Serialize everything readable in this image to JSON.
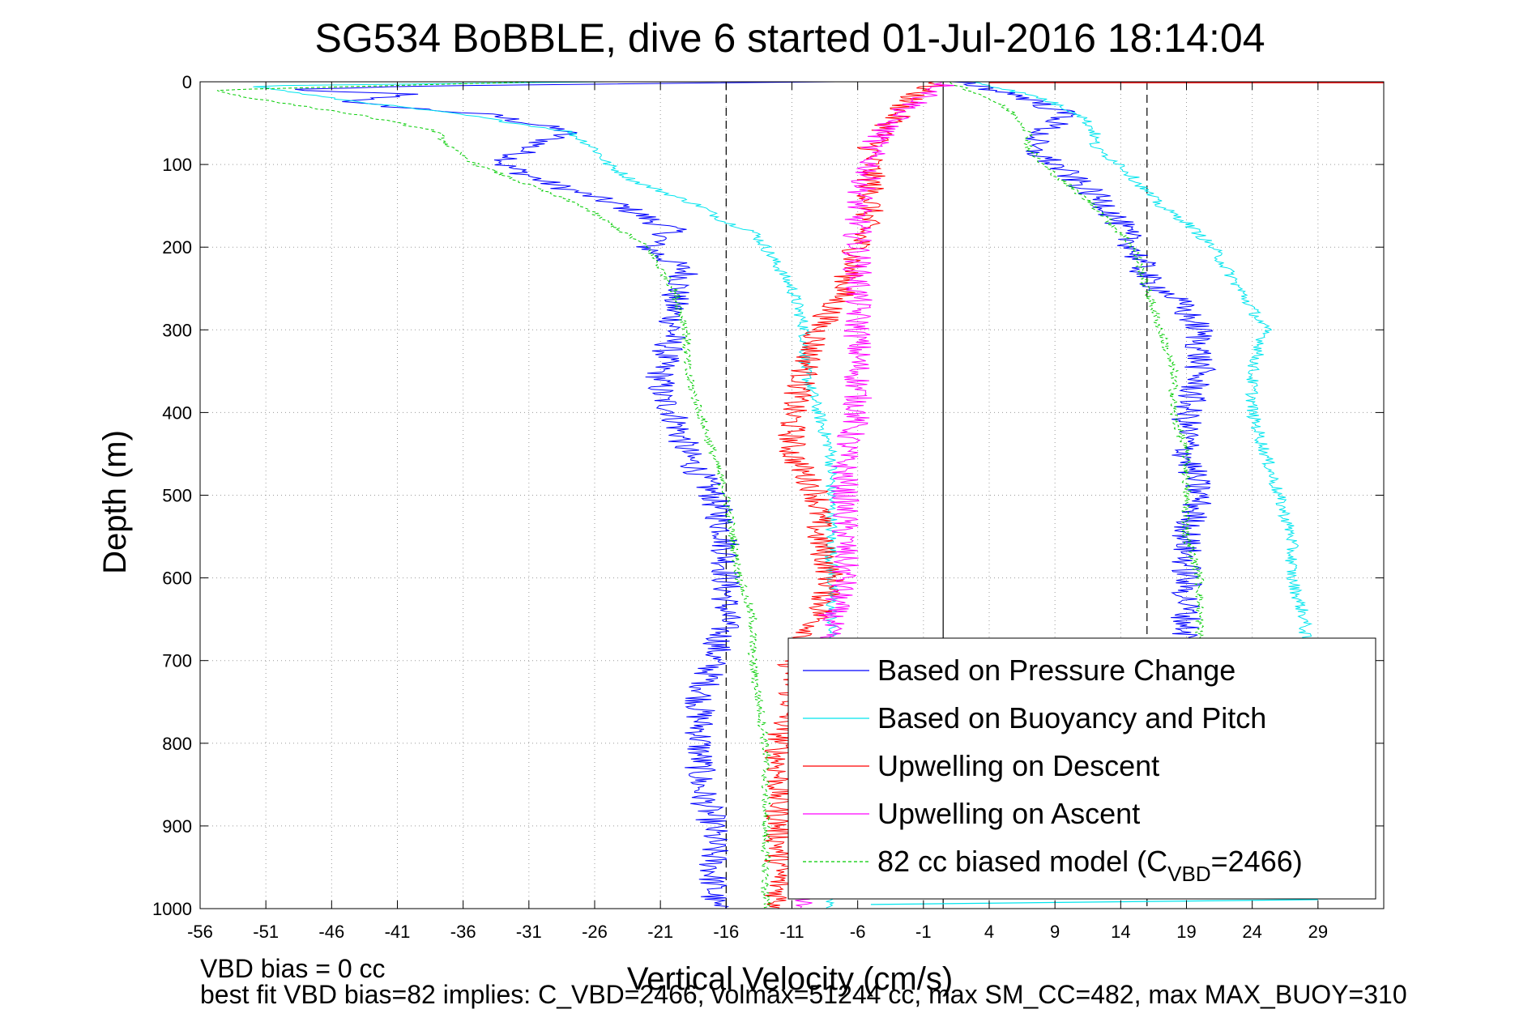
{
  "chart_data": {
    "type": "line",
    "title": "SG534 BoBBLE, dive 6 started 01-Jul-2016 18:14:04",
    "xlabel": "Vertical Velocity (cm/s)",
    "ylabel": "Depth (m)",
    "xlim": [
      -56,
      34
    ],
    "ylim": [
      1000,
      0
    ],
    "y_reversed": true,
    "grid": true,
    "xticks": [
      -56,
      -51,
      -46,
      -41,
      -36,
      -31,
      -26,
      -21,
      -16,
      -11,
      -6,
      -1,
      4,
      9,
      14,
      19,
      24,
      29
    ],
    "yticks": [
      0,
      100,
      200,
      300,
      400,
      500,
      600,
      700,
      800,
      900,
      1000
    ],
    "reference_lines": [
      {
        "kind": "solid",
        "x": 0.5,
        "color": "#000000"
      },
      {
        "kind": "dashed",
        "x": -16,
        "color": "#000000"
      },
      {
        "kind": "dashed",
        "x": 16,
        "color": "#000000"
      }
    ],
    "legend_position": "bottom-right",
    "series": [
      {
        "name": "Based on Pressure Change",
        "color": "#0000ff",
        "style": "solid",
        "noise": 1.2,
        "depth": [
          0,
          5,
          10,
          15,
          25,
          40,
          60,
          80,
          100,
          120,
          150,
          180,
          200,
          230,
          260,
          300,
          350,
          380,
          400,
          450,
          500,
          550,
          600,
          650,
          700,
          750,
          800,
          850,
          900,
          950,
          1000
        ],
        "velocity": [
          -8,
          -40,
          -50,
          -40,
          -45,
          -34,
          -28,
          -31,
          -33,
          -30,
          -24,
          -20,
          -22,
          -19,
          -20,
          -20,
          -21,
          -21,
          -20,
          -19,
          -17,
          -16,
          -16,
          -16,
          -17,
          -18,
          -18,
          -18,
          -17,
          -17,
          -17
        ]
      },
      {
        "name": "Based on Buoyancy and Pitch",
        "color": "#00e5ee",
        "style": "solid",
        "noise": 0.5,
        "depth": [
          0,
          5,
          10,
          20,
          40,
          60,
          80,
          100,
          120,
          150,
          170,
          180,
          200,
          250,
          300,
          350,
          400,
          450,
          500,
          600,
          700,
          800,
          900,
          1000
        ],
        "velocity": [
          -25,
          -52,
          -50,
          -46,
          -36,
          -28,
          -26,
          -25,
          -23,
          -18,
          -16,
          -14,
          -13,
          -11,
          -10,
          -10,
          -9,
          -8,
          -8,
          -8,
          -8,
          -8,
          -8,
          -8
        ]
      },
      {
        "name": "Upwelling on Descent",
        "color": "#ff0000",
        "style": "solid",
        "noise": 1.1,
        "depth": [
          0,
          20,
          40,
          60,
          80,
          100,
          150,
          200,
          250,
          300,
          350,
          400,
          450,
          500,
          550,
          600,
          650,
          700,
          750,
          800,
          850,
          900,
          950,
          1000
        ],
        "velocity": [
          0,
          -2,
          -3,
          -4,
          -5,
          -5,
          -5,
          -6,
          -7,
          -9,
          -10,
          -11,
          -11,
          -9,
          -9,
          -8,
          -9,
          -11,
          -11,
          -12,
          -12,
          -12,
          -12,
          -12
        ]
      },
      {
        "name": "Upwelling on Ascent",
        "color": "#ff00ff",
        "style": "solid",
        "noise": 1.1,
        "depth": [
          0,
          20,
          40,
          60,
          80,
          100,
          150,
          200,
          250,
          300,
          350,
          400,
          450,
          500,
          550,
          600,
          650,
          700,
          750,
          800,
          850,
          900,
          950,
          1000
        ],
        "velocity": [
          1,
          -1,
          -3,
          -4,
          -5,
          -5,
          -6,
          -6,
          -6,
          -6,
          -6,
          -6,
          -7,
          -7,
          -7,
          -7,
          -8,
          -9,
          -9,
          -10,
          -10,
          -10,
          -10,
          -10
        ]
      },
      {
        "name": "82 cc biased model (C_VBD=2466)",
        "color": "#00cc00",
        "style": "dashed",
        "noise": 0.35,
        "depth": [
          0,
          10,
          20,
          40,
          60,
          80,
          100,
          150,
          200,
          250,
          300,
          350,
          400,
          450,
          500,
          600,
          650,
          700,
          800,
          900,
          1000
        ],
        "velocity": [
          -30,
          -55,
          -52,
          -44,
          -38,
          -37,
          -35,
          -27,
          -22,
          -20,
          -19,
          -19,
          -18,
          -17,
          -16,
          -15,
          -14,
          -14,
          -13,
          -13,
          -13
        ]
      },
      {
        "name": "ascent_pressure_change",
        "color": "#0000ff",
        "style": "solid",
        "noise": 1.2,
        "depth": [
          0,
          20,
          40,
          60,
          80,
          100,
          150,
          200,
          240,
          260,
          300,
          350,
          400,
          450,
          500,
          550,
          600,
          650,
          700
        ],
        "velocity": [
          2,
          7,
          10,
          8,
          7,
          9,
          13,
          15,
          16,
          18,
          20,
          20,
          19,
          19,
          20,
          19,
          19,
          19,
          19
        ]
      },
      {
        "name": "ascent_buoyancy_pitch",
        "color": "#00e5ee",
        "style": "solid",
        "noise": 0.5,
        "depth": [
          0,
          20,
          40,
          60,
          80,
          100,
          150,
          170,
          200,
          250,
          300,
          350,
          400,
          450,
          500,
          550,
          600,
          650,
          700
        ],
        "velocity": [
          3,
          8,
          11,
          12,
          12,
          14,
          17,
          19,
          21,
          23,
          25,
          24,
          24,
          25,
          26,
          27,
          27,
          28,
          28
        ]
      },
      {
        "name": "ascent_model",
        "color": "#00cc00",
        "style": "dashed",
        "noise": 0.35,
        "depth": [
          0,
          20,
          40,
          60,
          80,
          100,
          150,
          200,
          250,
          300,
          350,
          400,
          450,
          500,
          550,
          600,
          650,
          700
        ],
        "velocity": [
          1,
          4,
          6,
          7,
          7,
          8,
          12,
          15,
          16,
          17,
          18,
          18,
          19,
          19,
          19,
          20,
          20,
          20
        ]
      }
    ],
    "surface_spike": {
      "color": "#ff0000",
      "depth": 0,
      "x_from": 4,
      "x_to": 34
    },
    "bottom_segment": {
      "color": "#00e5ee",
      "depth": 995,
      "x_from": -5,
      "x_to": 29
    }
  },
  "legend": {
    "entries": [
      {
        "label": "Based on Pressure Change",
        "color": "#0000ff",
        "dashed": false
      },
      {
        "label": "Based on Buoyancy and Pitch",
        "color": "#00e5ee",
        "dashed": false
      },
      {
        "label": "Upwelling on Descent",
        "color": "#ff0000",
        "dashed": false
      },
      {
        "label": "Upwelling on Ascent",
        "color": "#ff00ff",
        "dashed": false
      },
      {
        "label": "82 cc biased model (C",
        "sub": "VBD",
        "tail": "=2466)",
        "color": "#00cc00",
        "dashed": true
      }
    ]
  },
  "notes": {
    "bias": "VBD bias = 0 cc",
    "bestfit": "best fit VBD bias=82 implies: C_VBD=2466, volmax=51244 cc, max SM_CC=482, max MAX_BUOY=310"
  }
}
